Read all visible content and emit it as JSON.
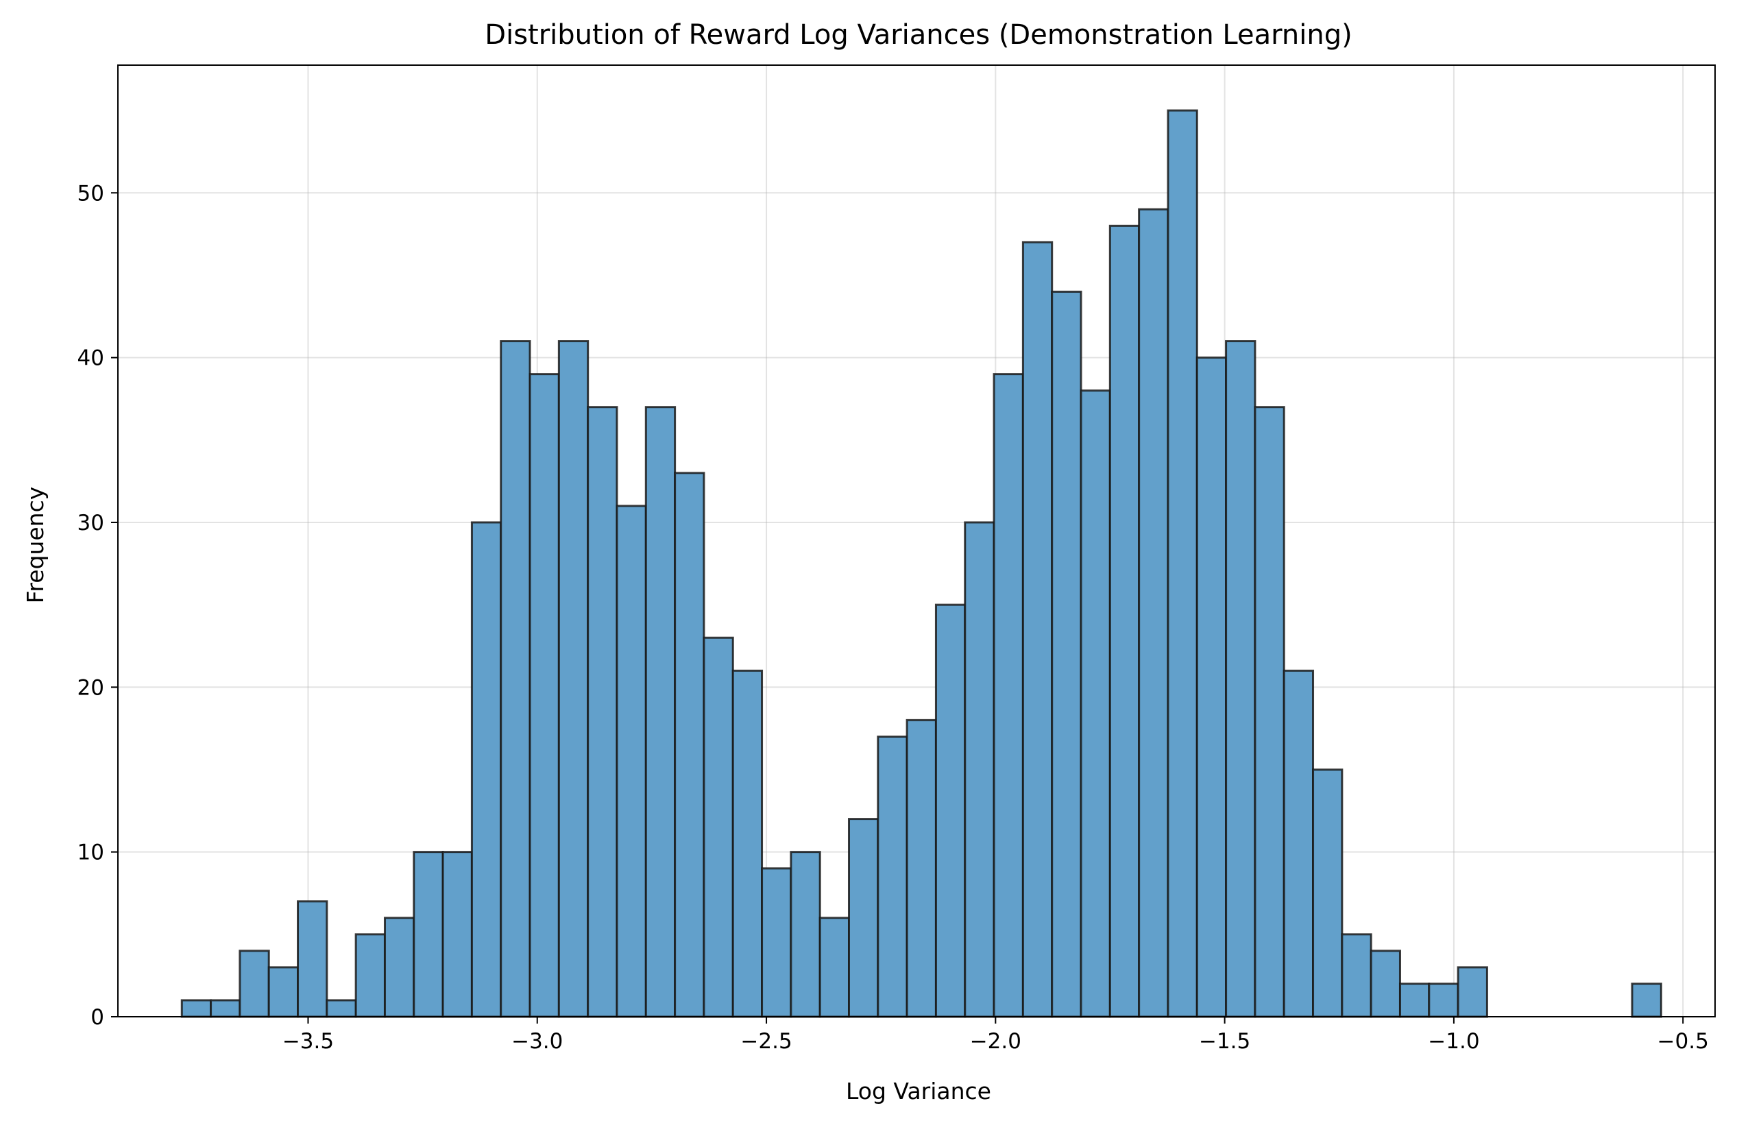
{
  "chart_data": {
    "type": "bar",
    "title": "Distribution of Reward Log Variances (Demonstration Learning)",
    "xlabel": "Log Variance",
    "ylabel": "Frequency",
    "bar_color": "#62a0cb",
    "edge_color": "#1a1a1a",
    "grid": true,
    "xlim": [
      -3.915,
      -0.43
    ],
    "ylim": [
      0,
      57.75
    ],
    "xticks": [
      -3.5,
      -3.0,
      -2.5,
      -2.0,
      -1.5,
      -1.0,
      -0.5
    ],
    "xtick_labels": [
      "−3.5",
      "−3.0",
      "−2.5",
      "−2.0",
      "−1.5",
      "−1.0",
      "−0.5"
    ],
    "yticks": [
      0,
      10,
      20,
      30,
      40,
      50
    ],
    "ytick_labels": [
      "0",
      "10",
      "20",
      "30",
      "40",
      "50"
    ],
    "bin_start": -3.7755,
    "bin_width": 0.06329,
    "values": [
      1,
      1,
      4,
      3,
      7,
      1,
      5,
      6,
      10,
      10,
      30,
      41,
      39,
      41,
      37,
      31,
      37,
      33,
      23,
      21,
      9,
      10,
      6,
      12,
      17,
      18,
      25,
      30,
      39,
      47,
      44,
      38,
      48,
      49,
      55,
      40,
      41,
      37,
      21,
      15,
      5,
      4,
      2,
      2,
      3,
      0,
      0,
      0,
      0,
      0,
      2
    ]
  }
}
